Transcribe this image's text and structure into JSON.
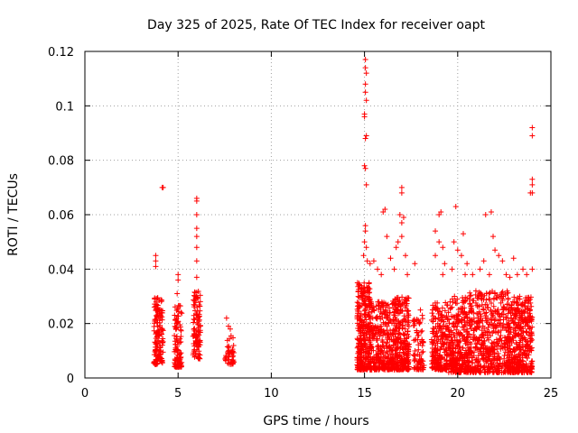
{
  "chart_data": {
    "type": "scatter",
    "title": "Day 325 of 2025, Rate Of TEC Index for receiver oapt",
    "xlabel": "GPS time / hours",
    "ylabel": "ROTI / TECUs",
    "xlim": [
      0,
      25
    ],
    "ylim": [
      0,
      0.12
    ],
    "xticks": [
      "0",
      "5",
      "10",
      "15",
      "20",
      "25"
    ],
    "yticks": [
      "0",
      "0.02",
      "0.04",
      "0.06",
      "0.08",
      "0.1",
      "0.12"
    ],
    "grid": true,
    "marker": "+",
    "color": "#ff0000",
    "clusters": [
      {
        "x_range": [
          3.7,
          4.2
        ],
        "y_range": [
          0.005,
          0.03
        ],
        "n": 140,
        "outliers": [
          [
            3.8,
            0.045
          ],
          [
            3.8,
            0.043
          ],
          [
            3.8,
            0.041
          ],
          [
            4.0,
            0.025
          ],
          [
            4.1,
            0.024
          ],
          [
            4.2,
            0.07
          ],
          [
            4.15,
            0.07
          ]
        ]
      },
      {
        "x_range": [
          4.8,
          5.2
        ],
        "y_range": [
          0.004,
          0.027
        ],
        "n": 100,
        "outliers": [
          [
            5.0,
            0.038
          ],
          [
            5.0,
            0.036
          ],
          [
            4.95,
            0.031
          ]
        ]
      },
      {
        "x_range": [
          5.8,
          6.2
        ],
        "y_range": [
          0.007,
          0.032
        ],
        "n": 110,
        "outliers": [
          [
            6.0,
            0.066
          ],
          [
            6.0,
            0.065
          ],
          [
            6.0,
            0.06
          ],
          [
            6.0,
            0.055
          ],
          [
            6.0,
            0.052
          ],
          [
            6.0,
            0.048
          ],
          [
            6.0,
            0.043
          ],
          [
            6.0,
            0.037
          ]
        ]
      },
      {
        "x_range": [
          7.5,
          8.0
        ],
        "y_range": [
          0.005,
          0.016
        ],
        "n": 40,
        "outliers": [
          [
            7.6,
            0.022
          ],
          [
            7.7,
            0.019
          ],
          [
            7.8,
            0.018
          ]
        ]
      },
      {
        "x_range": [
          14.6,
          15.3
        ],
        "y_range": [
          0.003,
          0.035
        ],
        "n": 320,
        "outliers": [
          [
            15.05,
            0.117
          ],
          [
            15.05,
            0.114
          ],
          [
            15.1,
            0.112
          ],
          [
            15.05,
            0.108
          ],
          [
            15.05,
            0.105
          ],
          [
            15.1,
            0.102
          ],
          [
            15.0,
            0.097
          ],
          [
            15.0,
            0.096
          ],
          [
            15.1,
            0.089
          ],
          [
            15.05,
            0.088
          ],
          [
            15.0,
            0.078
          ],
          [
            15.05,
            0.077
          ],
          [
            15.1,
            0.071
          ],
          [
            15.05,
            0.056
          ],
          [
            15.05,
            0.054
          ],
          [
            15.0,
            0.05
          ],
          [
            15.1,
            0.048
          ],
          [
            14.95,
            0.045
          ],
          [
            15.15,
            0.043
          ],
          [
            15.3,
            0.042
          ]
        ]
      },
      {
        "x_range": [
          15.3,
          16.5
        ],
        "y_range": [
          0.003,
          0.028
        ],
        "n": 300,
        "outliers": [
          [
            15.5,
            0.043
          ],
          [
            15.7,
            0.04
          ],
          [
            16.0,
            0.061
          ],
          [
            16.1,
            0.062
          ],
          [
            16.2,
            0.052
          ],
          [
            16.4,
            0.044
          ],
          [
            15.9,
            0.038
          ]
        ]
      },
      {
        "x_range": [
          16.5,
          17.4
        ],
        "y_range": [
          0.003,
          0.03
        ],
        "n": 300,
        "outliers": [
          [
            17.0,
            0.07
          ],
          [
            17.0,
            0.068
          ],
          [
            16.9,
            0.06
          ],
          [
            17.1,
            0.059
          ],
          [
            17.0,
            0.057
          ],
          [
            17.0,
            0.052
          ],
          [
            16.8,
            0.05
          ],
          [
            16.7,
            0.048
          ],
          [
            17.2,
            0.045
          ],
          [
            16.6,
            0.04
          ],
          [
            17.3,
            0.038
          ]
        ]
      },
      {
        "x_range": [
          17.6,
          18.2
        ],
        "y_range": [
          0.003,
          0.022
        ],
        "n": 80,
        "outliers": [
          [
            17.7,
            0.042
          ],
          [
            18.0,
            0.025
          ],
          [
            18.1,
            0.023
          ]
        ]
      },
      {
        "x_range": [
          18.6,
          19.5
        ],
        "y_range": [
          0.003,
          0.028
        ],
        "n": 220,
        "outliers": [
          [
            19.1,
            0.061
          ],
          [
            19.0,
            0.06
          ],
          [
            18.8,
            0.054
          ],
          [
            19.0,
            0.05
          ],
          [
            19.2,
            0.048
          ],
          [
            18.8,
            0.045
          ],
          [
            19.3,
            0.042
          ],
          [
            19.2,
            0.038
          ]
        ]
      },
      {
        "x_range": [
          19.5,
          20.6
        ],
        "y_range": [
          0.002,
          0.03
        ],
        "n": 320,
        "outliers": [
          [
            19.9,
            0.063
          ],
          [
            20.3,
            0.053
          ],
          [
            19.8,
            0.05
          ],
          [
            20.0,
            0.047
          ],
          [
            20.2,
            0.045
          ],
          [
            20.5,
            0.042
          ],
          [
            19.7,
            0.04
          ],
          [
            20.4,
            0.038
          ]
        ]
      },
      {
        "x_range": [
          20.6,
          22.7
        ],
        "y_range": [
          0.002,
          0.032
        ],
        "n": 480,
        "outliers": [
          [
            21.5,
            0.06
          ],
          [
            21.8,
            0.061
          ],
          [
            21.9,
            0.052
          ],
          [
            22.0,
            0.047
          ],
          [
            22.2,
            0.045
          ],
          [
            21.4,
            0.043
          ],
          [
            22.4,
            0.043
          ],
          [
            21.2,
            0.04
          ],
          [
            20.8,
            0.038
          ],
          [
            21.7,
            0.038
          ],
          [
            22.6,
            0.038
          ]
        ]
      },
      {
        "x_range": [
          22.7,
          24.0
        ],
        "y_range": [
          0.002,
          0.03
        ],
        "n": 420,
        "outliers": [
          [
            24.0,
            0.092
          ],
          [
            24.0,
            0.089
          ],
          [
            24.0,
            0.073
          ],
          [
            24.0,
            0.071
          ],
          [
            24.0,
            0.068
          ],
          [
            23.9,
            0.068
          ],
          [
            23.0,
            0.044
          ],
          [
            23.5,
            0.04
          ],
          [
            23.7,
            0.038
          ],
          [
            24.0,
            0.04
          ],
          [
            23.2,
            0.038
          ],
          [
            22.8,
            0.037
          ]
        ]
      }
    ]
  }
}
